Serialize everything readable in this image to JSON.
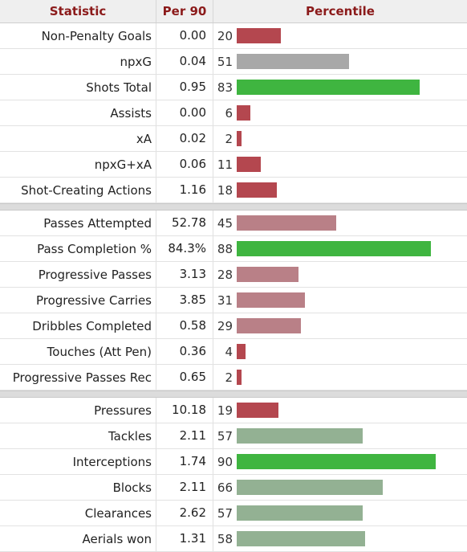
{
  "headers": {
    "stat": "Statistic",
    "per90": "Per 90",
    "percentile": "Percentile"
  },
  "colors": {
    "header_text": "#8b1a1a",
    "low": "#b4474f",
    "low_mid": "#b98087",
    "mid_gray": "#a8a8a8",
    "mid_green": "#93b193",
    "high": "#3fb540"
  },
  "groups": [
    [
      {
        "stat": "Non-Penalty Goals",
        "per90": "0.00",
        "pct": "20",
        "p": 20,
        "color": "low"
      },
      {
        "stat": "npxG",
        "per90": "0.04",
        "pct": "51",
        "p": 51,
        "color": "mid_gray"
      },
      {
        "stat": "Shots Total",
        "per90": "0.95",
        "pct": "83",
        "p": 83,
        "color": "high"
      },
      {
        "stat": "Assists",
        "per90": "0.00",
        "pct": "6",
        "p": 6,
        "color": "low"
      },
      {
        "stat": "xA",
        "per90": "0.02",
        "pct": "2",
        "p": 2,
        "color": "low"
      },
      {
        "stat": "npxG+xA",
        "per90": "0.06",
        "pct": "11",
        "p": 11,
        "color": "low"
      },
      {
        "stat": "Shot-Creating Actions",
        "per90": "1.16",
        "pct": "18",
        "p": 18,
        "color": "low"
      }
    ],
    [
      {
        "stat": "Passes Attempted",
        "per90": "52.78",
        "pct": "45",
        "p": 45,
        "color": "low_mid"
      },
      {
        "stat": "Pass Completion %",
        "per90": "84.3%",
        "pct": "88",
        "p": 88,
        "color": "high"
      },
      {
        "stat": "Progressive Passes",
        "per90": "3.13",
        "pct": "28",
        "p": 28,
        "color": "low_mid"
      },
      {
        "stat": "Progressive Carries",
        "per90": "3.85",
        "pct": "31",
        "p": 31,
        "color": "low_mid"
      },
      {
        "stat": "Dribbles Completed",
        "per90": "0.58",
        "pct": "29",
        "p": 29,
        "color": "low_mid"
      },
      {
        "stat": "Touches (Att Pen)",
        "per90": "0.36",
        "pct": "4",
        "p": 4,
        "color": "low"
      },
      {
        "stat": "Progressive Passes Rec",
        "per90": "0.65",
        "pct": "2",
        "p": 2,
        "color": "low"
      }
    ],
    [
      {
        "stat": "Pressures",
        "per90": "10.18",
        "pct": "19",
        "p": 19,
        "color": "low"
      },
      {
        "stat": "Tackles",
        "per90": "2.11",
        "pct": "57",
        "p": 57,
        "color": "mid_green"
      },
      {
        "stat": "Interceptions",
        "per90": "1.74",
        "pct": "90",
        "p": 90,
        "color": "high"
      },
      {
        "stat": "Blocks",
        "per90": "2.11",
        "pct": "66",
        "p": 66,
        "color": "mid_green"
      },
      {
        "stat": "Clearances",
        "per90": "2.62",
        "pct": "57",
        "p": 57,
        "color": "mid_green"
      },
      {
        "stat": "Aerials won",
        "per90": "1.31",
        "pct": "58",
        "p": 58,
        "color": "mid_green"
      }
    ]
  ]
}
